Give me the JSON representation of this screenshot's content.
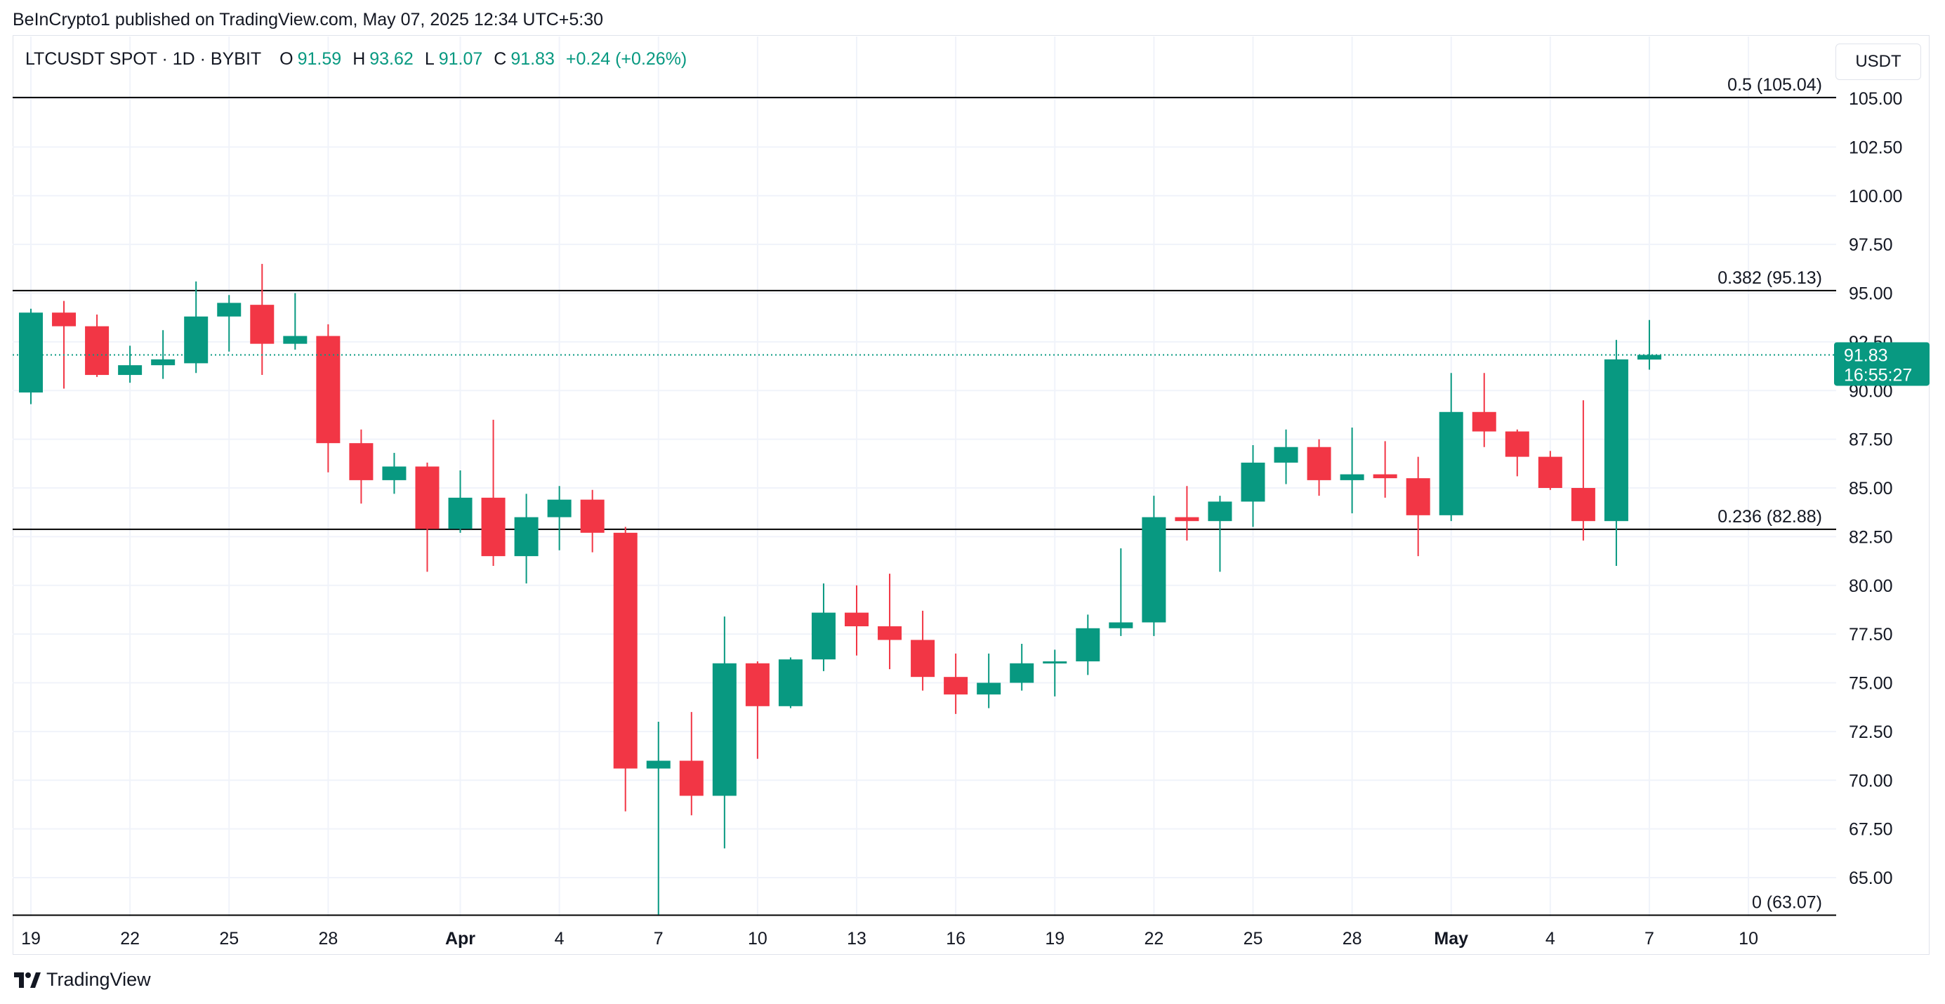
{
  "header": {
    "attribution": "BeInCrypto1 published on TradingView.com, May 07, 2025 12:34 UTC+5:30"
  },
  "legend": {
    "symbol": "LTCUSDT SPOT · 1D · BYBIT",
    "open_label": "O",
    "open": "91.59",
    "high_label": "H",
    "high": "93.62",
    "low_label": "L",
    "low": "91.07",
    "close_label": "C",
    "close": "91.83",
    "change": "+0.24 (+0.26%)"
  },
  "currency": "USDT",
  "footer": {
    "brand": "TradingView"
  },
  "colors": {
    "up": "#089981",
    "down": "#f23645",
    "grid": "#f0f3fa",
    "fib_line": "#000000",
    "price_line": "#089981"
  },
  "chart_data": {
    "type": "candlestick",
    "ylim": [
      63.07,
      107.5
    ],
    "y_ticks": [
      "65.00",
      "67.50",
      "70.00",
      "72.50",
      "75.00",
      "77.50",
      "80.00",
      "82.50",
      "85.00",
      "87.50",
      "90.00",
      "92.50",
      "95.00",
      "97.50",
      "100.00",
      "102.50",
      "105.00"
    ],
    "x_ticks": [
      {
        "label": "19",
        "date": "2025-03-19",
        "bold": false
      },
      {
        "label": "22",
        "date": "2025-03-22",
        "bold": false
      },
      {
        "label": "25",
        "date": "2025-03-25",
        "bold": false
      },
      {
        "label": "28",
        "date": "2025-03-28",
        "bold": false
      },
      {
        "label": "Apr",
        "date": "2025-04-01",
        "bold": true
      },
      {
        "label": "4",
        "date": "2025-04-04",
        "bold": false
      },
      {
        "label": "7",
        "date": "2025-04-07",
        "bold": false
      },
      {
        "label": "10",
        "date": "2025-04-10",
        "bold": false
      },
      {
        "label": "13",
        "date": "2025-04-13",
        "bold": false
      },
      {
        "label": "16",
        "date": "2025-04-16",
        "bold": false
      },
      {
        "label": "19",
        "date": "2025-04-19",
        "bold": false
      },
      {
        "label": "22",
        "date": "2025-04-22",
        "bold": false
      },
      {
        "label": "25",
        "date": "2025-04-25",
        "bold": false
      },
      {
        "label": "28",
        "date": "2025-04-28",
        "bold": false
      },
      {
        "label": "May",
        "date": "2025-05-01",
        "bold": true
      },
      {
        "label": "4",
        "date": "2025-05-04",
        "bold": false
      },
      {
        "label": "7",
        "date": "2025-05-07",
        "bold": false
      },
      {
        "label": "10",
        "date": "2025-05-10",
        "bold": false
      }
    ],
    "fib_levels": [
      {
        "label": "0.5 (105.04)",
        "value": 105.04
      },
      {
        "label": "0.382 (95.13)",
        "value": 95.13
      },
      {
        "label": "0.236 (82.88)",
        "value": 82.88
      },
      {
        "label": "0 (63.07)",
        "value": 63.07
      }
    ],
    "last_price": {
      "value": 91.83,
      "label": "91.83",
      "countdown": "16:55:27"
    },
    "candles": [
      {
        "date": "2025-03-19",
        "o": 89.9,
        "h": 94.2,
        "l": 89.3,
        "c": 94.0
      },
      {
        "date": "2025-03-20",
        "o": 94.0,
        "h": 94.6,
        "l": 90.1,
        "c": 93.3
      },
      {
        "date": "2025-03-21",
        "o": 93.3,
        "h": 93.9,
        "l": 90.7,
        "c": 90.8
      },
      {
        "date": "2025-03-22",
        "o": 90.8,
        "h": 92.3,
        "l": 90.4,
        "c": 91.3
      },
      {
        "date": "2025-03-23",
        "o": 91.3,
        "h": 93.1,
        "l": 90.6,
        "c": 91.6
      },
      {
        "date": "2025-03-24",
        "o": 91.4,
        "h": 95.6,
        "l": 90.9,
        "c": 93.8
      },
      {
        "date": "2025-03-25",
        "o": 93.8,
        "h": 94.9,
        "l": 92.0,
        "c": 94.5
      },
      {
        "date": "2025-03-26",
        "o": 94.4,
        "h": 96.5,
        "l": 90.8,
        "c": 92.4
      },
      {
        "date": "2025-03-27",
        "o": 92.4,
        "h": 95.0,
        "l": 92.1,
        "c": 92.8
      },
      {
        "date": "2025-03-28",
        "o": 92.8,
        "h": 93.4,
        "l": 85.8,
        "c": 87.3
      },
      {
        "date": "2025-03-29",
        "o": 87.3,
        "h": 88.0,
        "l": 84.2,
        "c": 85.4
      },
      {
        "date": "2025-03-30",
        "o": 85.4,
        "h": 86.8,
        "l": 84.7,
        "c": 86.1
      },
      {
        "date": "2025-03-31",
        "o": 86.1,
        "h": 86.3,
        "l": 80.7,
        "c": 82.9
      },
      {
        "date": "2025-04-01",
        "o": 82.9,
        "h": 85.9,
        "l": 82.7,
        "c": 84.5
      },
      {
        "date": "2025-04-02",
        "o": 84.5,
        "h": 88.5,
        "l": 81.0,
        "c": 81.5
      },
      {
        "date": "2025-04-03",
        "o": 81.5,
        "h": 84.7,
        "l": 80.1,
        "c": 83.5
      },
      {
        "date": "2025-04-04",
        "o": 83.5,
        "h": 85.1,
        "l": 81.8,
        "c": 84.4
      },
      {
        "date": "2025-04-05",
        "o": 84.4,
        "h": 84.9,
        "l": 81.7,
        "c": 82.7
      },
      {
        "date": "2025-04-06",
        "o": 82.7,
        "h": 83.0,
        "l": 68.4,
        "c": 70.6
      },
      {
        "date": "2025-04-07",
        "o": 70.6,
        "h": 73.0,
        "l": 63.1,
        "c": 71.0
      },
      {
        "date": "2025-04-08",
        "o": 71.0,
        "h": 73.5,
        "l": 68.2,
        "c": 69.2
      },
      {
        "date": "2025-04-09",
        "o": 69.2,
        "h": 78.4,
        "l": 66.5,
        "c": 76.0
      },
      {
        "date": "2025-04-10",
        "o": 76.0,
        "h": 76.1,
        "l": 71.1,
        "c": 73.8
      },
      {
        "date": "2025-04-11",
        "o": 73.8,
        "h": 76.3,
        "l": 73.7,
        "c": 76.2
      },
      {
        "date": "2025-04-12",
        "o": 76.2,
        "h": 80.1,
        "l": 75.6,
        "c": 78.6
      },
      {
        "date": "2025-04-13",
        "o": 78.6,
        "h": 80.0,
        "l": 76.4,
        "c": 77.9
      },
      {
        "date": "2025-04-14",
        "o": 77.9,
        "h": 80.6,
        "l": 75.7,
        "c": 77.2
      },
      {
        "date": "2025-04-15",
        "o": 77.2,
        "h": 78.7,
        "l": 74.6,
        "c": 75.3
      },
      {
        "date": "2025-04-16",
        "o": 75.3,
        "h": 76.5,
        "l": 73.4,
        "c": 74.4
      },
      {
        "date": "2025-04-17",
        "o": 74.4,
        "h": 76.5,
        "l": 73.7,
        "c": 75.0
      },
      {
        "date": "2025-04-18",
        "o": 75.0,
        "h": 77.0,
        "l": 74.6,
        "c": 76.0
      },
      {
        "date": "2025-04-19",
        "o": 76.0,
        "h": 76.7,
        "l": 74.3,
        "c": 76.1
      },
      {
        "date": "2025-04-20",
        "o": 76.1,
        "h": 78.5,
        "l": 75.4,
        "c": 77.8
      },
      {
        "date": "2025-04-21",
        "o": 77.8,
        "h": 81.9,
        "l": 77.4,
        "c": 78.1
      },
      {
        "date": "2025-04-22",
        "o": 78.1,
        "h": 84.6,
        "l": 77.4,
        "c": 83.5
      },
      {
        "date": "2025-04-23",
        "o": 83.5,
        "h": 85.1,
        "l": 82.3,
        "c": 83.3
      },
      {
        "date": "2025-04-24",
        "o": 83.3,
        "h": 84.6,
        "l": 80.7,
        "c": 84.3
      },
      {
        "date": "2025-04-25",
        "o": 84.3,
        "h": 87.2,
        "l": 83.0,
        "c": 86.3
      },
      {
        "date": "2025-04-26",
        "o": 86.3,
        "h": 88.0,
        "l": 85.2,
        "c": 87.1
      },
      {
        "date": "2025-04-27",
        "o": 87.1,
        "h": 87.5,
        "l": 84.6,
        "c": 85.4
      },
      {
        "date": "2025-04-28",
        "o": 85.4,
        "h": 88.1,
        "l": 83.7,
        "c": 85.7
      },
      {
        "date": "2025-04-29",
        "o": 85.7,
        "h": 87.4,
        "l": 84.5,
        "c": 85.5
      },
      {
        "date": "2025-04-30",
        "o": 85.5,
        "h": 86.6,
        "l": 81.5,
        "c": 83.6
      },
      {
        "date": "2025-05-01",
        "o": 83.6,
        "h": 90.9,
        "l": 83.3,
        "c": 88.9
      },
      {
        "date": "2025-05-02",
        "o": 88.9,
        "h": 90.9,
        "l": 87.1,
        "c": 87.9
      },
      {
        "date": "2025-05-03",
        "o": 87.9,
        "h": 88.0,
        "l": 85.6,
        "c": 86.6
      },
      {
        "date": "2025-05-04",
        "o": 86.6,
        "h": 86.9,
        "l": 84.9,
        "c": 85.0
      },
      {
        "date": "2025-05-05",
        "o": 85.0,
        "h": 89.5,
        "l": 82.3,
        "c": 83.3
      },
      {
        "date": "2025-05-06",
        "o": 83.3,
        "h": 92.6,
        "l": 81.0,
        "c": 91.6
      },
      {
        "date": "2025-05-07",
        "o": 91.59,
        "h": 93.62,
        "l": 91.07,
        "c": 91.83
      }
    ]
  }
}
